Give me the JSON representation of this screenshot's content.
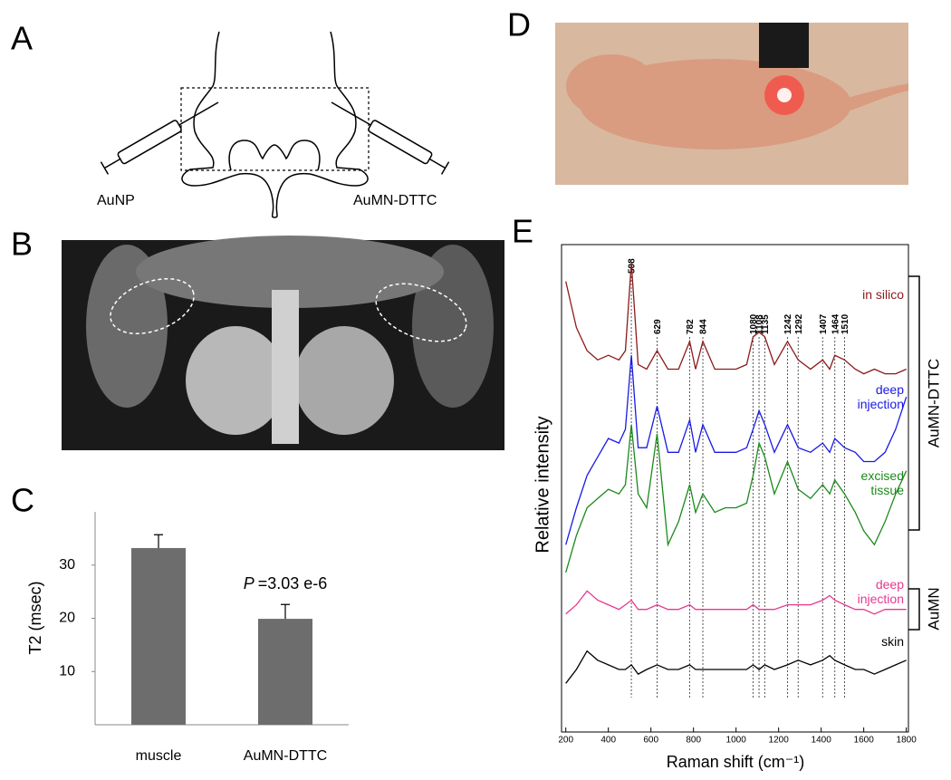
{
  "panel_labels": [
    "A",
    "B",
    "C",
    "D",
    "E"
  ],
  "panel_a": {
    "left_label": "AuNP",
    "right_label": "AuMN-DTTC"
  },
  "chart_data": [
    {
      "type": "bar",
      "ylabel": "T2 (msec)",
      "categories": [
        "muscle",
        "AuMN-DTTC"
      ],
      "values": [
        33.2,
        19.9
      ],
      "errors": [
        2.5,
        2.7
      ],
      "color": "#6d6d6d",
      "ylim": [
        0,
        40
      ],
      "yticks": [
        10,
        20,
        30
      ],
      "annotation": {
        "italic": "P",
        "text": "=3.03 e-6"
      }
    },
    {
      "type": "line",
      "xlabel": "Raman shift (cm⁻¹)",
      "ylabel": "Relative intensity",
      "x": [
        200,
        250,
        300,
        350,
        400,
        450,
        480,
        508,
        540,
        580,
        629,
        680,
        730,
        782,
        810,
        844,
        900,
        950,
        1000,
        1050,
        1080,
        1108,
        1135,
        1180,
        1242,
        1292,
        1350,
        1407,
        1440,
        1464,
        1510,
        1560,
        1600,
        1650,
        1700,
        1750,
        1800
      ],
      "series": [
        {
          "name": "in silico",
          "color": "#8b1a1a",
          "values": [
            94,
            84,
            79,
            77,
            78,
            77,
            79,
            98,
            76,
            75,
            79,
            75,
            75,
            81,
            75,
            81,
            75,
            75,
            75,
            76,
            82,
            83,
            82,
            76,
            81,
            77,
            75,
            77,
            75,
            78,
            77,
            75,
            74,
            75,
            74,
            74,
            75
          ]
        },
        {
          "name": "deep injection",
          "color": "#1a1ae6",
          "values": [
            37,
            45,
            52,
            56,
            60,
            59,
            62,
            78,
            58,
            58,
            67,
            57,
            57,
            64,
            57,
            63,
            57,
            57,
            57,
            58,
            62,
            66,
            63,
            57,
            63,
            58,
            57,
            59,
            57,
            60,
            58,
            57,
            55,
            55,
            57,
            62,
            69
          ]
        },
        {
          "name": "excised tissue",
          "color": "#1a8a1a",
          "values": [
            31,
            39,
            45,
            47,
            49,
            48,
            50,
            63,
            48,
            45,
            61,
            37,
            42,
            50,
            44,
            48,
            44,
            45,
            45,
            46,
            52,
            59,
            56,
            48,
            55,
            49,
            47,
            50,
            48,
            51,
            48,
            44,
            40,
            37,
            42,
            48,
            53
          ]
        },
        {
          "name": "deep injection",
          "color": "#e6388f",
          "values": [
            22,
            24,
            27,
            25,
            24,
            23,
            24,
            25,
            23,
            23,
            24,
            23,
            23,
            24,
            23,
            23,
            23,
            23,
            23,
            23,
            24,
            23,
            23,
            23,
            24,
            24,
            24,
            25,
            26,
            25,
            24,
            23,
            23,
            22,
            23,
            23,
            23
          ]
        },
        {
          "name": "skin",
          "color": "#000000",
          "values": [
            7,
            10,
            14,
            12,
            11,
            10,
            10,
            11,
            9,
            10,
            11,
            10,
            10,
            11,
            10,
            10,
            10,
            10,
            10,
            10,
            11,
            10,
            11,
            10,
            11,
            12,
            11,
            12,
            13,
            12,
            11,
            10,
            10,
            9,
            10,
            11,
            12
          ]
        }
      ],
      "xlim": [
        180,
        1810
      ],
      "xticks": [
        200,
        400,
        600,
        800,
        1000,
        1200,
        1400,
        1600,
        1800
      ],
      "ylim": [
        0,
        100
      ],
      "peaks": [
        508,
        629,
        782,
        844,
        1080,
        1108,
        1135,
        1242,
        1292,
        1407,
        1464,
        1510
      ],
      "groups": [
        {
          "label": "AuMN-DTTC"
        },
        {
          "label": "AuMN"
        }
      ]
    }
  ]
}
